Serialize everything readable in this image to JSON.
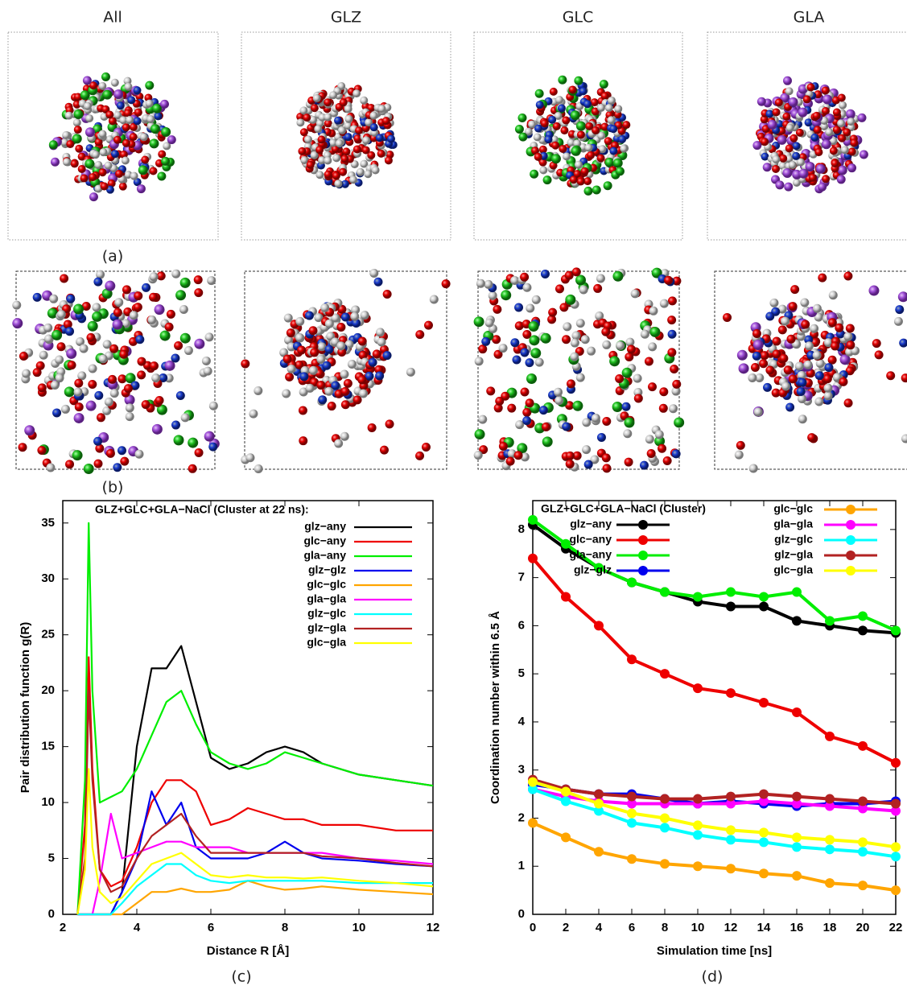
{
  "columns": [
    "All",
    "GLZ",
    "GLC",
    "GLA"
  ],
  "panel_labels": [
    "(a)",
    "(b)",
    "(c)",
    "(d)"
  ],
  "chart_data": [
    {
      "type": "line",
      "title": "GLZ+GLC+GLA−NaCl (Cluster at 22 ns):",
      "xlabel": "Distance R [Å]",
      "ylabel": "Pair distribution function g(R)",
      "xlim": [
        2,
        12
      ],
      "xticks": [
        2,
        4,
        6,
        8,
        10,
        12
      ],
      "ylim": [
        0,
        37
      ],
      "yticks": [
        0,
        5,
        10,
        15,
        20,
        25,
        30,
        35
      ],
      "x": [
        2.4,
        2.6,
        2.7,
        2.8,
        3.0,
        3.3,
        3.6,
        4.0,
        4.4,
        4.8,
        5.2,
        5.6,
        6.0,
        6.5,
        7.0,
        7.5,
        8.0,
        8.5,
        9.0,
        10.0,
        11.0,
        12.0
      ],
      "series": [
        {
          "name": "glz−any",
          "color": "#000000",
          "values": [
            0,
            0,
            0,
            0,
            0,
            0,
            2,
            15,
            22,
            22,
            24,
            19,
            14,
            13,
            13.5,
            14.5,
            15,
            14.5,
            13.5,
            12.5,
            12,
            11.5
          ]
        },
        {
          "name": "glc−any",
          "color": "#ee0000",
          "values": [
            0,
            8,
            23,
            13,
            4,
            2.5,
            3,
            6,
            10,
            12,
            12,
            11,
            8,
            8.5,
            9.5,
            9,
            8.5,
            8.5,
            8,
            8,
            7.5,
            7.5
          ]
        },
        {
          "name": "gla−any",
          "color": "#00ee00",
          "values": [
            0,
            12,
            35,
            20,
            10,
            10.5,
            11,
            13,
            16,
            19,
            20,
            17,
            14.5,
            13.5,
            13,
            13.5,
            14.5,
            14,
            13.5,
            12.5,
            12,
            11.5
          ]
        },
        {
          "name": "glz−glz",
          "color": "#0000ee",
          "values": [
            0,
            0,
            0,
            0,
            0,
            0,
            2,
            5,
            11,
            8,
            10,
            6,
            5,
            5,
            5,
            5.5,
            6.5,
            5.5,
            5,
            4.8,
            4.5,
            4.3
          ]
        },
        {
          "name": "glc−glc",
          "color": "#ffa500",
          "values": [
            0,
            0,
            0,
            0,
            0,
            0,
            0,
            1,
            2,
            2,
            2.3,
            2,
            2,
            2.2,
            3,
            2.5,
            2.2,
            2.3,
            2.5,
            2.2,
            2,
            1.8
          ]
        },
        {
          "name": "gla−gla",
          "color": "#ff00ff",
          "values": [
            0,
            0,
            0,
            0,
            3,
            9,
            5,
            5.5,
            6,
            6.5,
            6.5,
            6,
            6,
            6,
            5.5,
            5.5,
            5.5,
            5.5,
            5.5,
            5,
            4.8,
            4.5
          ]
        },
        {
          "name": "glz−glc",
          "color": "#00ffff",
          "values": [
            0,
            0,
            0,
            0,
            0,
            0,
            1,
            2.5,
            3.5,
            4.5,
            4.5,
            3.5,
            3,
            2.8,
            3,
            3,
            3,
            3,
            3,
            2.8,
            2.8,
            2.8
          ]
        },
        {
          "name": "glz−gla",
          "color": "#b22222",
          "values": [
            0,
            5,
            20,
            12,
            4,
            2,
            2.5,
            5,
            7,
            8,
            9,
            7,
            5.5,
            5.5,
            5.5,
            5.5,
            5.5,
            5.5,
            5.2,
            5,
            4.6,
            4.3
          ]
        },
        {
          "name": "glc−gla",
          "color": "#ffff00",
          "values": [
            0,
            4,
            13,
            6,
            2,
            1,
            1.5,
            3,
            4.5,
            5,
            5.5,
            4.5,
            3.5,
            3.3,
            3.5,
            3.3,
            3.3,
            3.2,
            3.3,
            3,
            2.8,
            2.5
          ]
        }
      ]
    },
    {
      "type": "line-points",
      "title": "GLZ+GLC+GLA−NaCl (Cluster)",
      "xlabel": "Simulation time [ns]",
      "ylabel": "Coordination number within 6.5 Å",
      "xlim": [
        0,
        22
      ],
      "xticks": [
        0,
        2,
        4,
        6,
        8,
        10,
        12,
        14,
        16,
        18,
        20,
        22
      ],
      "ylim": [
        0,
        8.6
      ],
      "yticks": [
        0,
        1,
        2,
        3,
        4,
        5,
        6,
        7,
        8
      ],
      "x": [
        0,
        2,
        4,
        6,
        8,
        10,
        12,
        14,
        16,
        18,
        20,
        22
      ],
      "series": [
        {
          "name": "glz−any",
          "color": "#000000",
          "values": [
            8.1,
            7.6,
            7.2,
            6.9,
            6.7,
            6.5,
            6.4,
            6.4,
            6.1,
            6.0,
            5.9,
            5.85
          ]
        },
        {
          "name": "glc−any",
          "color": "#ee0000",
          "values": [
            7.4,
            6.6,
            6.0,
            5.3,
            5.0,
            4.7,
            4.6,
            4.4,
            4.2,
            3.7,
            3.5,
            3.15
          ]
        },
        {
          "name": "gla−any",
          "color": "#00ee00",
          "values": [
            8.2,
            7.7,
            7.2,
            6.9,
            6.7,
            6.6,
            6.7,
            6.6,
            6.7,
            6.1,
            6.2,
            5.9
          ]
        },
        {
          "name": "glz−glz",
          "color": "#0000ee",
          "values": [
            2.7,
            2.6,
            2.5,
            2.5,
            2.4,
            2.3,
            2.35,
            2.3,
            2.25,
            2.3,
            2.3,
            2.35
          ]
        },
        {
          "name": "glc−glc",
          "color": "#ffa500",
          "values": [
            1.9,
            1.6,
            1.3,
            1.15,
            1.05,
            1.0,
            0.95,
            0.85,
            0.8,
            0.65,
            0.6,
            0.5
          ]
        },
        {
          "name": "gla−gla",
          "color": "#ff00ff",
          "values": [
            2.6,
            2.45,
            2.35,
            2.3,
            2.3,
            2.3,
            2.3,
            2.35,
            2.3,
            2.25,
            2.2,
            2.15
          ]
        },
        {
          "name": "glz−glc",
          "color": "#00ffff",
          "values": [
            2.6,
            2.35,
            2.15,
            1.9,
            1.8,
            1.65,
            1.55,
            1.5,
            1.4,
            1.35,
            1.3,
            1.2
          ]
        },
        {
          "name": "glz−gla",
          "color": "#b22222",
          "values": [
            2.8,
            2.6,
            2.5,
            2.45,
            2.4,
            2.4,
            2.45,
            2.5,
            2.45,
            2.4,
            2.35,
            2.3
          ]
        },
        {
          "name": "glc−gla",
          "color": "#ffff00",
          "values": [
            2.75,
            2.55,
            2.3,
            2.1,
            2.0,
            1.85,
            1.75,
            1.7,
            1.6,
            1.55,
            1.5,
            1.4
          ]
        }
      ]
    }
  ]
}
